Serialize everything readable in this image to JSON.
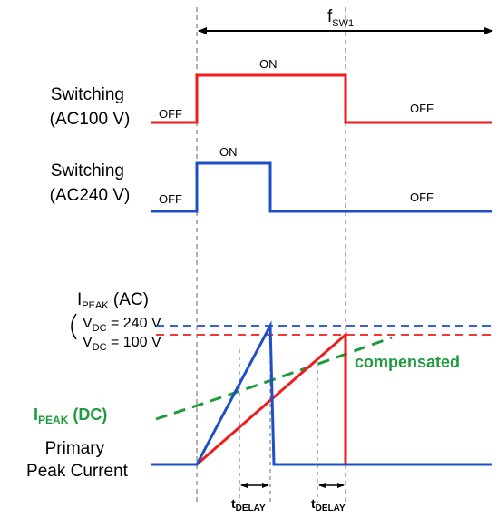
{
  "colors": {
    "red": "#ee1c1c",
    "blue": "#1f4fc6",
    "green": "#1f9a3e",
    "gray": "#808080",
    "black": "#000000"
  },
  "fsw": {
    "main": "f",
    "sub": "SW1"
  },
  "ac100": {
    "label_line1": "Switching",
    "label_line2": "(AC100 V)",
    "off_left": "OFF",
    "on": "ON",
    "off_right": "OFF"
  },
  "ac240": {
    "label_line1": "Switching",
    "label_line2": "(AC240 V)",
    "off_left": "OFF",
    "on": "ON",
    "off_right": "OFF"
  },
  "ipeak_ac": {
    "main": "I",
    "sub": "PEAK",
    "suffix": " (AC)",
    "vdc240_main": "V",
    "vdc240_sub": "DC",
    "vdc240_suffix": " = 240 V",
    "vdc100_main": "V",
    "vdc100_sub": "DC",
    "vdc100_suffix": " = 100 V"
  },
  "compensated": "compensated",
  "ipeak_dc": {
    "main": "I",
    "sub": "PEAK",
    "suffix": " (DC)"
  },
  "primary": {
    "line1": "Primary",
    "line2": "Peak Current"
  },
  "delay": {
    "main": "t",
    "sub": "DELAY"
  }
}
